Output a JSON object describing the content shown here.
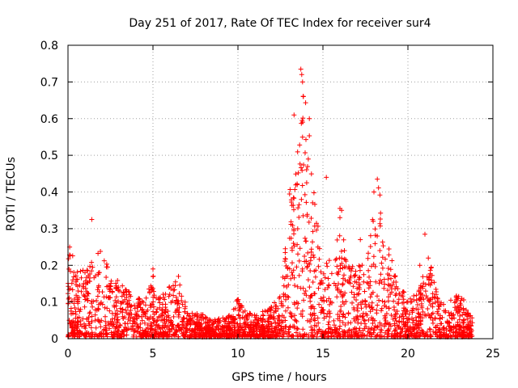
{
  "chart_data": {
    "type": "scatter",
    "title": "Day 251 of 2017, Rate Of TEC Index for receiver sur4",
    "xlabel": "GPS time / hours",
    "ylabel": "ROTI / TECUs",
    "xlim": [
      0,
      25
    ],
    "ylim": [
      0,
      0.8
    ],
    "x_ticks": [
      0,
      5,
      10,
      15,
      20,
      25
    ],
    "y_ticks": [
      0,
      0.1,
      0.2,
      0.3,
      0.4,
      0.5,
      0.6,
      0.7,
      0.8
    ],
    "x_tick_labels": [
      "0",
      "5",
      "10",
      "15",
      "20",
      "25"
    ],
    "y_tick_labels": [
      "0",
      "0.1",
      "0.2",
      "0.3",
      "0.4",
      "0.5",
      "0.6",
      "0.7",
      "0.8"
    ],
    "grid": true,
    "marker": "+",
    "color": "#ff0000",
    "x_range": [
      0,
      23.8
    ],
    "envelope": {
      "x": [
        0,
        0.2,
        0.5,
        1.0,
        1.5,
        1.8,
        2.0,
        2.3,
        2.5,
        3.0,
        3.5,
        4.0,
        4.5,
        5.0,
        5.3,
        5.7,
        6.0,
        6.5,
        7.0,
        7.5,
        8.0,
        8.5,
        9.0,
        9.5,
        10.0,
        10.5,
        11.0,
        11.5,
        12.0,
        12.5,
        12.8,
        13.0,
        13.3,
        13.6,
        13.9,
        14.2,
        14.5,
        14.8,
        15.0,
        15.5,
        16.0,
        16.5,
        17.0,
        17.5,
        18.0,
        18.3,
        18.6,
        19.0,
        19.5,
        20.0,
        20.5,
        21.0,
        21.3,
        21.7,
        22.0,
        22.5,
        23.0,
        23.3,
        23.8
      ],
      "y": [
        0.22,
        0.24,
        0.18,
        0.2,
        0.21,
        0.24,
        0.25,
        0.2,
        0.18,
        0.15,
        0.13,
        0.12,
        0.1,
        0.17,
        0.11,
        0.12,
        0.14,
        0.16,
        0.08,
        0.07,
        0.06,
        0.05,
        0.05,
        0.06,
        0.11,
        0.07,
        0.06,
        0.07,
        0.09,
        0.12,
        0.25,
        0.4,
        0.5,
        0.62,
        0.7,
        0.55,
        0.42,
        0.3,
        0.2,
        0.22,
        0.3,
        0.22,
        0.2,
        0.2,
        0.35,
        0.42,
        0.3,
        0.22,
        0.15,
        0.1,
        0.12,
        0.2,
        0.22,
        0.12,
        0.1,
        0.1,
        0.12,
        0.1,
        0.05
      ]
    },
    "notable_points": [
      {
        "x": 1.4,
        "y": 0.325
      },
      {
        "x": 13.7,
        "y": 0.735
      },
      {
        "x": 13.75,
        "y": 0.72
      },
      {
        "x": 13.8,
        "y": 0.7
      },
      {
        "x": 13.85,
        "y": 0.66
      },
      {
        "x": 13.3,
        "y": 0.61
      },
      {
        "x": 14.2,
        "y": 0.6
      },
      {
        "x": 18.2,
        "y": 0.435
      },
      {
        "x": 18.0,
        "y": 0.4
      },
      {
        "x": 15.2,
        "y": 0.44
      },
      {
        "x": 16.0,
        "y": 0.355
      },
      {
        "x": 16.1,
        "y": 0.35
      },
      {
        "x": 16.0,
        "y": 0.33
      },
      {
        "x": 21.0,
        "y": 0.285
      },
      {
        "x": 21.2,
        "y": 0.22
      },
      {
        "x": 20.7,
        "y": 0.2
      },
      {
        "x": 17.2,
        "y": 0.27
      },
      {
        "x": 6.5,
        "y": 0.17
      },
      {
        "x": 5.0,
        "y": 0.19
      },
      {
        "x": 0.1,
        "y": 0.25
      }
    ]
  }
}
